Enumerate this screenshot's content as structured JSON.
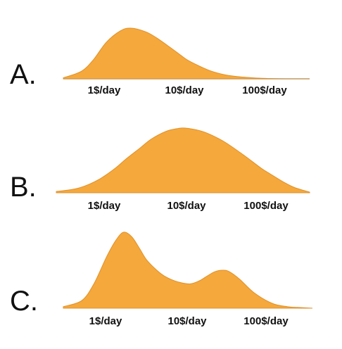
{
  "chart_data": [
    {
      "type": "area",
      "panel_label": "A.",
      "x_ticks": [
        "1$/day",
        "10$/day",
        "100$/day"
      ],
      "x_scale": "log",
      "x_range": [
        0.3,
        300
      ],
      "y_range": [
        0,
        1
      ],
      "grid": false,
      "baseline_color": "#bfd3e6",
      "x": [
        0.3,
        0.5,
        0.7,
        1,
        1.5,
        2,
        3,
        4,
        6,
        8,
        10,
        15,
        20,
        30,
        50,
        80,
        100,
        150,
        200,
        300
      ],
      "y": [
        0.02,
        0.15,
        0.38,
        0.72,
        0.95,
        1.0,
        0.93,
        0.82,
        0.62,
        0.47,
        0.36,
        0.22,
        0.14,
        0.07,
        0.03,
        0.01,
        0.005,
        0.0,
        0.0,
        0.0
      ]
    },
    {
      "type": "area",
      "panel_label": "B.",
      "x_ticks": [
        "1$/day",
        "10$/day",
        "100$/day"
      ],
      "x_scale": "log",
      "x_range": [
        0.3,
        300
      ],
      "y_range": [
        0,
        1
      ],
      "grid": false,
      "x": [
        0.3,
        0.5,
        0.7,
        1,
        1.5,
        2,
        3,
        4,
        6,
        8,
        10,
        15,
        20,
        30,
        50,
        80,
        100,
        150,
        200,
        300
      ],
      "y": [
        0.02,
        0.06,
        0.12,
        0.22,
        0.38,
        0.52,
        0.7,
        0.83,
        0.95,
        0.99,
        1.0,
        0.96,
        0.9,
        0.78,
        0.58,
        0.38,
        0.3,
        0.16,
        0.08,
        0.01
      ]
    },
    {
      "type": "area",
      "panel_label": "C.",
      "x_ticks": [
        "1$/day",
        "10$/day",
        "100$/day"
      ],
      "x_scale": "log",
      "x_range": [
        0.3,
        300
      ],
      "y_range": [
        0,
        1
      ],
      "grid": false,
      "x": [
        0.3,
        0.5,
        0.7,
        1,
        1.3,
        1.6,
        2,
        2.5,
        3,
        4,
        5,
        7,
        10,
        13,
        16,
        20,
        25,
        30,
        40,
        60,
        100,
        150,
        200,
        300
      ],
      "y": [
        0.02,
        0.1,
        0.32,
        0.68,
        0.9,
        1.0,
        0.94,
        0.78,
        0.64,
        0.5,
        0.42,
        0.35,
        0.32,
        0.36,
        0.42,
        0.48,
        0.5,
        0.48,
        0.38,
        0.2,
        0.06,
        0.02,
        0.01,
        0.0
      ]
    }
  ],
  "colors": {
    "fill": "#f5a83b",
    "stroke": "#e0912a",
    "label": "#111111"
  }
}
